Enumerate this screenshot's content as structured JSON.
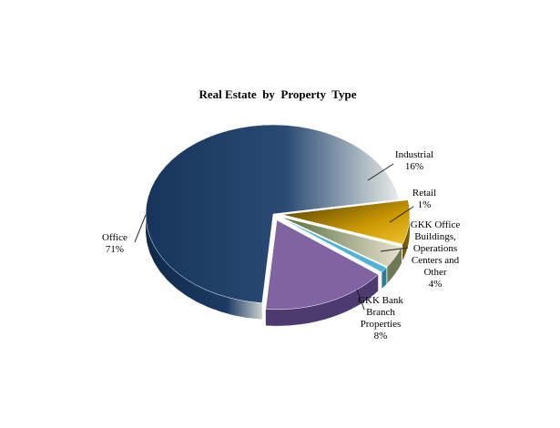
{
  "chart_data": {
    "type": "pie",
    "title": "Real Estate  by  Property  Type",
    "slices": [
      {
        "name": "Office",
        "value": 71,
        "label_lines": [
          "Office",
          "71%"
        ],
        "color": "#1b3a63",
        "exploded": false
      },
      {
        "name": "GKK Bank Branch Properties",
        "value": 8,
        "label_lines": [
          "GKK Bank",
          "Branch",
          "Properties",
          "8%"
        ],
        "color": "#d6a300",
        "exploded": true
      },
      {
        "name": "GKK Office Buildings, Operations Centers and Other",
        "value": 4,
        "label_lines": [
          "GKK  Office",
          "Buildings,",
          "Operations",
          "Centers and",
          "Other",
          "4%"
        ],
        "color": "#b9c2a0",
        "exploded": true
      },
      {
        "name": "Retail",
        "value": 1,
        "label_lines": [
          "Retail",
          "1%"
        ],
        "color": "#4fb3d6",
        "exploded": true
      },
      {
        "name": "Industrial",
        "value": 16,
        "label_lines": [
          "Industrial",
          "16%"
        ],
        "color": "#8064a2",
        "exploded": true
      }
    ],
    "legend": "none",
    "style": "3d-exploded-pie"
  }
}
